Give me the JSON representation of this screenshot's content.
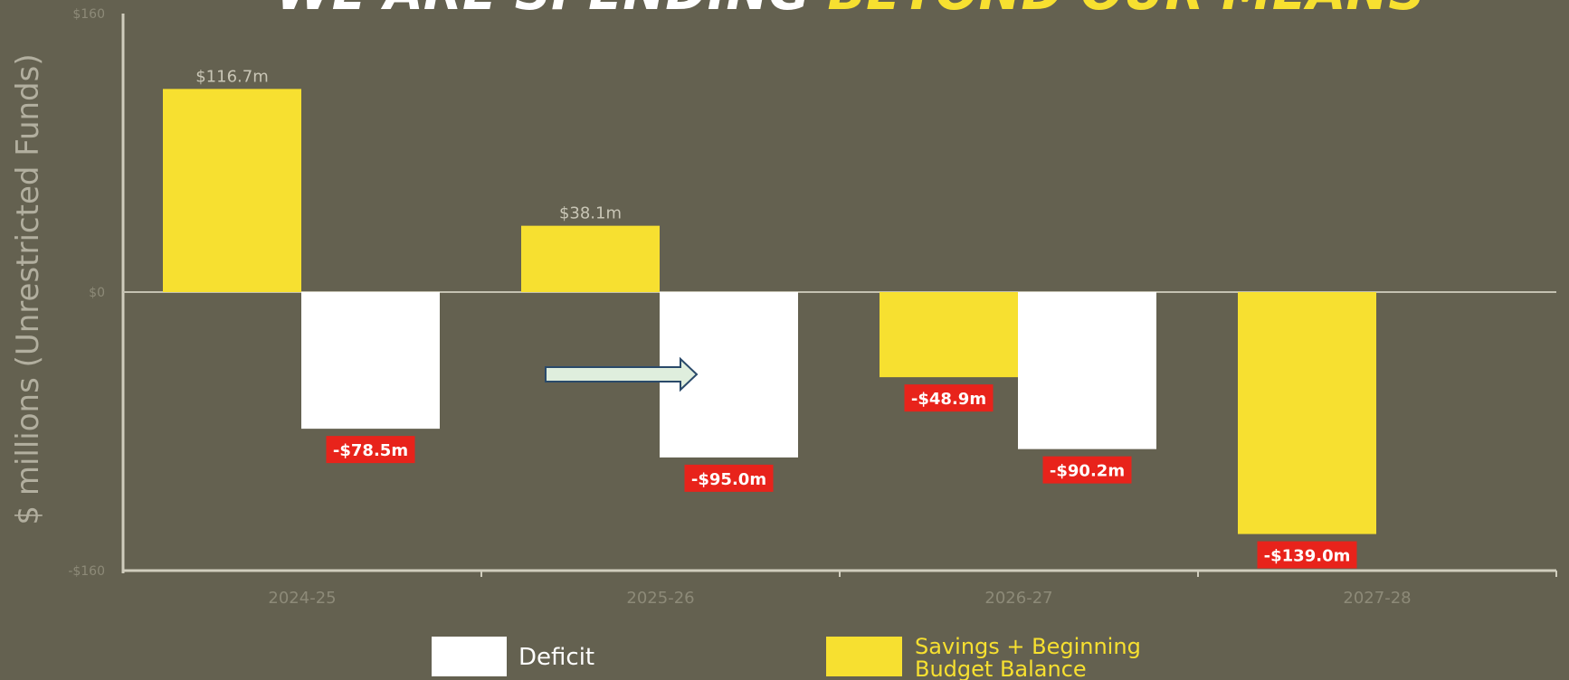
{
  "title": {
    "part1": "WE ARE SPENDING",
    "part2": "BEYOND OUR MEANS"
  },
  "chart_data": {
    "type": "bar",
    "ylabel": "$ millions (Unrestricted Funds)",
    "ylim": [
      -160,
      160
    ],
    "yticks": [
      {
        "value": 160,
        "label": "$160"
      },
      {
        "value": 0,
        "label": "$0"
      },
      {
        "value": -160,
        "label": "-$160"
      }
    ],
    "categories": [
      "2024-25",
      "2025-26",
      "2026-27",
      "2027-28"
    ],
    "series": [
      {
        "name": "Savings + Beginning Budget Balance",
        "color": "#f7e030",
        "values": [
          116.7,
          38.1,
          -48.9,
          -139.0
        ],
        "labels": [
          "$116.7m",
          "$38.1m",
          "-$48.9m",
          "-$139.0m"
        ]
      },
      {
        "name": "Deficit",
        "color": "#ffffff",
        "values": [
          -78.5,
          -95.0,
          -90.2,
          null
        ],
        "labels": [
          "-$78.5m",
          "-$95.0m",
          "-$90.2m",
          ""
        ]
      }
    ],
    "legend": {
      "position": "bottom",
      "items": [
        {
          "label": "Deficit",
          "color": "#ffffff"
        },
        {
          "label_line1": "Savings + Beginning",
          "label_line2": "Budget Balance",
          "color": "#f7e030"
        }
      ]
    },
    "negative_label_color": "#e8231b",
    "grid": false
  }
}
